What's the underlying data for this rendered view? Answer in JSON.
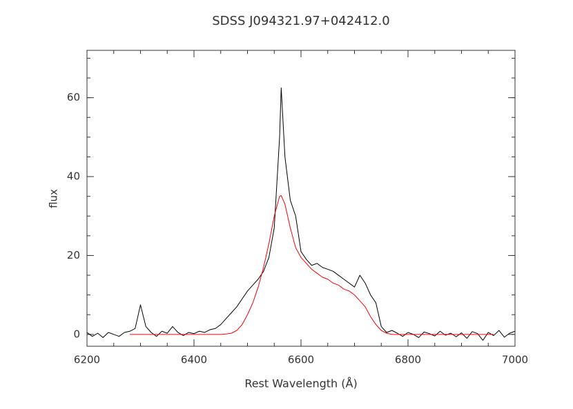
{
  "chart_data": {
    "type": "line",
    "title": "SDSS J094321.97+042412.0",
    "xlabel": "Rest Wavelength (Å)",
    "ylabel": "flux",
    "x": [
      6200,
      6210,
      6220,
      6230,
      6240,
      6250,
      6260,
      6270,
      6280,
      6290,
      6300,
      6310,
      6320,
      6330,
      6340,
      6350,
      6360,
      6370,
      6380,
      6390,
      6400,
      6410,
      6420,
      6430,
      6440,
      6450,
      6460,
      6470,
      6480,
      6490,
      6500,
      6510,
      6520,
      6530,
      6540,
      6550,
      6560,
      6563,
      6570,
      6580,
      6590,
      6600,
      6610,
      6620,
      6630,
      6640,
      6650,
      6660,
      6670,
      6680,
      6690,
      6700,
      6710,
      6720,
      6730,
      6740,
      6750,
      6760,
      6770,
      6780,
      6790,
      6800,
      6810,
      6820,
      6830,
      6840,
      6850,
      6860,
      6870,
      6880,
      6890,
      6900,
      6910,
      6920,
      6930,
      6940,
      6950,
      6960,
      6970,
      6980,
      6990,
      7000
    ],
    "series": [
      {
        "color": "#000000",
        "values": [
          0.5,
          -0.5,
          0.3,
          -0.8,
          0.5,
          0,
          -0.5,
          0.5,
          0.8,
          1.5,
          7.5,
          2,
          0.5,
          -0.5,
          0.8,
          0.3,
          2,
          0.5,
          -0.3,
          0.5,
          0.2,
          0.8,
          0.5,
          1.2,
          1.5,
          2.5,
          4,
          5.5,
          7,
          9,
          11,
          12.5,
          14,
          16,
          19.5,
          27,
          50,
          62.5,
          45,
          34,
          30,
          21,
          19,
          17.5,
          18,
          17,
          16.5,
          16,
          15,
          14,
          13,
          12,
          15,
          13,
          10,
          8,
          2,
          0.5,
          1,
          0.3,
          -0.5,
          0.5,
          0,
          -0.8,
          0.6,
          0.2,
          -0.4,
          0.8,
          -0.2,
          0.3,
          -0.6,
          0.4,
          -1,
          0.7,
          0.2,
          -1.5,
          0.5,
          -0.3,
          1,
          -0.7,
          0.3,
          0.8
        ]
      },
      {
        "color": "#ff0000",
        "values": [
          null,
          null,
          null,
          null,
          null,
          null,
          null,
          null,
          0,
          0,
          0,
          0,
          0,
          0,
          0,
          0,
          0,
          0,
          0,
          0,
          0,
          0,
          0,
          0,
          0,
          0,
          0.1,
          0.3,
          1,
          2.5,
          5,
          8,
          12,
          17,
          23,
          30,
          35,
          35.2,
          33,
          27,
          22,
          19.5,
          18,
          16.5,
          15.5,
          14.5,
          14,
          13,
          12.5,
          11.5,
          11,
          10,
          8.5,
          7,
          4.5,
          2.5,
          1,
          0.3,
          0,
          0,
          0,
          0,
          0,
          0,
          0,
          0,
          0,
          0,
          0,
          0,
          0,
          0,
          0,
          0,
          0,
          0,
          0,
          0,
          null,
          null,
          null,
          null
        ]
      }
    ],
    "xlim": [
      6200,
      7000
    ],
    "xticks": [
      6200,
      6400,
      6600,
      6800,
      7000
    ],
    "ylim": [
      -3,
      72
    ],
    "yticks": [
      0,
      20,
      40,
      60
    ]
  }
}
